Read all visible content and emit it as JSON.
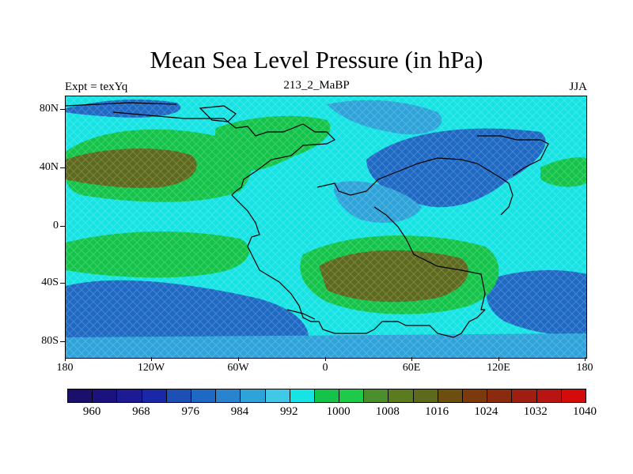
{
  "title": "Mean Sea Level Pressure (in hPa)",
  "subtitle_left": "Expt = texYq",
  "subtitle_center": "213_2_MaBP",
  "subtitle_right": "JJA",
  "y_ticks": [
    "80N",
    "40N",
    "0",
    "40S",
    "80S"
  ],
  "x_ticks": [
    "180",
    "120W",
    "60W",
    "0",
    "60E",
    "120E",
    "180"
  ],
  "colorbar": {
    "labels": [
      "960",
      "968",
      "976",
      "984",
      "992",
      "1000",
      "1008",
      "1016",
      "1024",
      "1032",
      "1040"
    ],
    "colors": [
      "#1a0f6b",
      "#1c127e",
      "#1c1a95",
      "#1928a8",
      "#1d4fb5",
      "#1e69c3",
      "#2a83cf",
      "#2ea3d9",
      "#3fc9e6",
      "#16e3e3",
      "#14c44a",
      "#1fc94a",
      "#4a8f2c",
      "#5b7b1f",
      "#5d6a1d",
      "#6b4e10",
      "#7b3a0e",
      "#8a2a0e",
      "#a01e10",
      "#b81412",
      "#d40b0b"
    ]
  },
  "map_colors": {
    "low": "#1e69c3",
    "mid_low": "#2ea3d9",
    "neutral": "#16e3e3",
    "mid_high": "#14c44a",
    "high": "#5d6a1d",
    "coast": "#000000"
  }
}
